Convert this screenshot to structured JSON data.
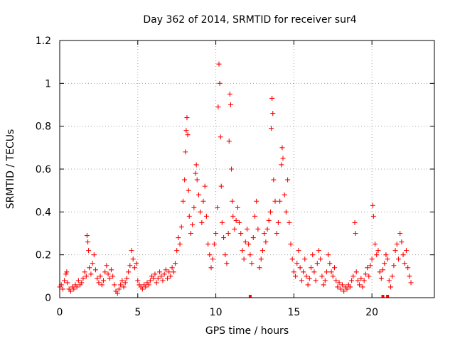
{
  "chart_data": {
    "type": "scatter",
    "title": "Day 362 of 2014, SRMTID for receiver sur4",
    "xlabel": "GPS time / hours",
    "ylabel": "SRMTID / TECUs",
    "xlim": [
      0,
      24
    ],
    "ylim": [
      0,
      1.2
    ],
    "xticks": [
      0,
      5,
      10,
      15,
      20
    ],
    "xtick_labels": [
      "0",
      "5",
      "10",
      "15",
      "20"
    ],
    "yticks": [
      0,
      0.2,
      0.4,
      0.6,
      0.8,
      1,
      1.2
    ],
    "ytick_labels": [
      "0",
      "0.2",
      "0.4",
      "0.6",
      "0.8",
      "1",
      "1.2"
    ],
    "grid": true,
    "marker": "+",
    "color": "#ff0000",
    "series": [
      {
        "name": "SRMTID",
        "points": [
          [
            0.0,
            0.05
          ],
          [
            0.1,
            0.06
          ],
          [
            0.2,
            0.04
          ],
          [
            0.3,
            0.08
          ],
          [
            0.4,
            0.11
          ],
          [
            0.45,
            0.12
          ],
          [
            0.5,
            0.07
          ],
          [
            0.6,
            0.04
          ],
          [
            0.7,
            0.03
          ],
          [
            0.8,
            0.05
          ],
          [
            0.9,
            0.04
          ],
          [
            1.0,
            0.06
          ],
          [
            1.1,
            0.05
          ],
          [
            1.2,
            0.08
          ],
          [
            1.3,
            0.06
          ],
          [
            1.4,
            0.07
          ],
          [
            1.5,
            0.09
          ],
          [
            1.6,
            0.12
          ],
          [
            1.7,
            0.1
          ],
          [
            1.75,
            0.29
          ],
          [
            1.8,
            0.26
          ],
          [
            1.85,
            0.22
          ],
          [
            1.9,
            0.14
          ],
          [
            2.0,
            0.11
          ],
          [
            2.1,
            0.16
          ],
          [
            2.2,
            0.2
          ],
          [
            2.3,
            0.13
          ],
          [
            2.4,
            0.09
          ],
          [
            2.5,
            0.07
          ],
          [
            2.6,
            0.1
          ],
          [
            2.7,
            0.06
          ],
          [
            2.8,
            0.08
          ],
          [
            2.9,
            0.12
          ],
          [
            3.0,
            0.15
          ],
          [
            3.1,
            0.11
          ],
          [
            3.2,
            0.09
          ],
          [
            3.3,
            0.13
          ],
          [
            3.4,
            0.1
          ],
          [
            3.5,
            0.06
          ],
          [
            3.6,
            0.03
          ],
          [
            3.7,
            0.02
          ],
          [
            3.8,
            0.04
          ],
          [
            3.9,
            0.06
          ],
          [
            4.0,
            0.08
          ],
          [
            4.1,
            0.05
          ],
          [
            4.2,
            0.07
          ],
          [
            4.3,
            0.09
          ],
          [
            4.4,
            0.12
          ],
          [
            4.5,
            0.15
          ],
          [
            4.6,
            0.22
          ],
          [
            4.7,
            0.18
          ],
          [
            4.8,
            0.14
          ],
          [
            4.9,
            0.16
          ],
          [
            5.0,
            0.08
          ],
          [
            5.1,
            0.06
          ],
          [
            5.2,
            0.05
          ],
          [
            5.3,
            0.04
          ],
          [
            5.4,
            0.06
          ],
          [
            5.5,
            0.05
          ],
          [
            5.6,
            0.07
          ],
          [
            5.7,
            0.06
          ],
          [
            5.8,
            0.08
          ],
          [
            5.9,
            0.1
          ],
          [
            6.0,
            0.09
          ],
          [
            6.1,
            0.11
          ],
          [
            6.2,
            0.07
          ],
          [
            6.3,
            0.09
          ],
          [
            6.4,
            0.12
          ],
          [
            6.5,
            0.1
          ],
          [
            6.6,
            0.08
          ],
          [
            6.7,
            0.11
          ],
          [
            6.8,
            0.13
          ],
          [
            6.9,
            0.09
          ],
          [
            7.0,
            0.12
          ],
          [
            7.1,
            0.1
          ],
          [
            7.2,
            0.14
          ],
          [
            7.3,
            0.12
          ],
          [
            7.4,
            0.16
          ],
          [
            7.5,
            0.22
          ],
          [
            7.6,
            0.28
          ],
          [
            7.7,
            0.25
          ],
          [
            7.8,
            0.33
          ],
          [
            7.9,
            0.45
          ],
          [
            8.0,
            0.55
          ],
          [
            8.05,
            0.68
          ],
          [
            8.1,
            0.78
          ],
          [
            8.15,
            0.84
          ],
          [
            8.2,
            0.76
          ],
          [
            8.25,
            0.5
          ],
          [
            8.3,
            0.38
          ],
          [
            8.4,
            0.3
          ],
          [
            8.5,
            0.34
          ],
          [
            8.6,
            0.42
          ],
          [
            8.7,
            0.58
          ],
          [
            8.75,
            0.62
          ],
          [
            8.8,
            0.55
          ],
          [
            8.9,
            0.48
          ],
          [
            9.0,
            0.4
          ],
          [
            9.1,
            0.35
          ],
          [
            9.2,
            0.45
          ],
          [
            9.3,
            0.52
          ],
          [
            9.4,
            0.38
          ],
          [
            9.5,
            0.25
          ],
          [
            9.6,
            0.2
          ],
          [
            9.7,
            0.14
          ],
          [
            9.8,
            0.18
          ],
          [
            9.9,
            0.25
          ],
          [
            10.0,
            0.3
          ],
          [
            10.1,
            0.42
          ],
          [
            10.15,
            0.89
          ],
          [
            10.2,
            1.09
          ],
          [
            10.25,
            1.0
          ],
          [
            10.3,
            0.75
          ],
          [
            10.35,
            0.52
          ],
          [
            10.4,
            0.35
          ],
          [
            10.5,
            0.28
          ],
          [
            10.6,
            0.2
          ],
          [
            10.7,
            0.16
          ],
          [
            10.8,
            0.3
          ],
          [
            10.85,
            0.73
          ],
          [
            10.9,
            0.95
          ],
          [
            10.95,
            0.9
          ],
          [
            11.0,
            0.6
          ],
          [
            11.05,
            0.45
          ],
          [
            11.1,
            0.38
          ],
          [
            11.2,
            0.32
          ],
          [
            11.3,
            0.36
          ],
          [
            11.4,
            0.42
          ],
          [
            11.5,
            0.35
          ],
          [
            11.6,
            0.3
          ],
          [
            11.7,
            0.22
          ],
          [
            11.8,
            0.18
          ],
          [
            11.9,
            0.26
          ],
          [
            12.0,
            0.32
          ],
          [
            12.1,
            0.25
          ],
          [
            12.2,
            0.2
          ],
          [
            12.3,
            0.16
          ],
          [
            12.4,
            0.28
          ],
          [
            12.5,
            0.38
          ],
          [
            12.6,
            0.45
          ],
          [
            12.7,
            0.32
          ],
          [
            12.8,
            0.14
          ],
          [
            12.9,
            0.18
          ],
          [
            13.0,
            0.22
          ],
          [
            13.1,
            0.3
          ],
          [
            13.2,
            0.26
          ],
          [
            13.3,
            0.32
          ],
          [
            13.4,
            0.36
          ],
          [
            13.5,
            0.4
          ],
          [
            13.55,
            0.79
          ],
          [
            13.6,
            0.93
          ],
          [
            13.65,
            0.86
          ],
          [
            13.7,
            0.55
          ],
          [
            13.8,
            0.45
          ],
          [
            13.9,
            0.3
          ],
          [
            14.0,
            0.35
          ],
          [
            14.1,
            0.45
          ],
          [
            14.2,
            0.62
          ],
          [
            14.25,
            0.7
          ],
          [
            14.3,
            0.65
          ],
          [
            14.4,
            0.48
          ],
          [
            14.5,
            0.4
          ],
          [
            14.6,
            0.55
          ],
          [
            14.7,
            0.35
          ],
          [
            14.8,
            0.25
          ],
          [
            14.9,
            0.18
          ],
          [
            15.0,
            0.12
          ],
          [
            15.1,
            0.1
          ],
          [
            15.2,
            0.16
          ],
          [
            15.3,
            0.22
          ],
          [
            15.4,
            0.14
          ],
          [
            15.5,
            0.08
          ],
          [
            15.6,
            0.12
          ],
          [
            15.7,
            0.18
          ],
          [
            15.8,
            0.1
          ],
          [
            15.9,
            0.06
          ],
          [
            16.0,
            0.09
          ],
          [
            16.1,
            0.14
          ],
          [
            16.2,
            0.2
          ],
          [
            16.3,
            0.12
          ],
          [
            16.4,
            0.08
          ],
          [
            16.5,
            0.16
          ],
          [
            16.6,
            0.22
          ],
          [
            16.7,
            0.18
          ],
          [
            16.8,
            0.1
          ],
          [
            16.9,
            0.06
          ],
          [
            17.0,
            0.08
          ],
          [
            17.1,
            0.12
          ],
          [
            17.2,
            0.2
          ],
          [
            17.3,
            0.16
          ],
          [
            17.4,
            0.12
          ],
          [
            17.5,
            0.1
          ],
          [
            17.6,
            0.14
          ],
          [
            17.7,
            0.08
          ],
          [
            17.8,
            0.05
          ],
          [
            17.9,
            0.07
          ],
          [
            18.0,
            0.04
          ],
          [
            18.1,
            0.06
          ],
          [
            18.2,
            0.03
          ],
          [
            18.3,
            0.05
          ],
          [
            18.4,
            0.04
          ],
          [
            18.5,
            0.06
          ],
          [
            18.6,
            0.05
          ],
          [
            18.7,
            0.08
          ],
          [
            18.8,
            0.1
          ],
          [
            18.9,
            0.35
          ],
          [
            18.95,
            0.3
          ],
          [
            19.0,
            0.12
          ],
          [
            19.1,
            0.08
          ],
          [
            19.2,
            0.06
          ],
          [
            19.3,
            0.09
          ],
          [
            19.4,
            0.05
          ],
          [
            19.5,
            0.08
          ],
          [
            19.6,
            0.11
          ],
          [
            19.7,
            0.14
          ],
          [
            19.8,
            0.1
          ],
          [
            19.9,
            0.15
          ],
          [
            20.0,
            0.18
          ],
          [
            20.05,
            0.43
          ],
          [
            20.1,
            0.38
          ],
          [
            20.2,
            0.25
          ],
          [
            20.3,
            0.2
          ],
          [
            20.4,
            0.22
          ],
          [
            20.5,
            0.12
          ],
          [
            20.6,
            0.09
          ],
          [
            20.7,
            0.13
          ],
          [
            20.8,
            0.16
          ],
          [
            20.9,
            0.2
          ],
          [
            21.0,
            0.18
          ],
          [
            21.1,
            0.08
          ],
          [
            21.2,
            0.05
          ],
          [
            21.3,
            0.1
          ],
          [
            21.4,
            0.15
          ],
          [
            21.5,
            0.22
          ],
          [
            21.6,
            0.25
          ],
          [
            21.7,
            0.18
          ],
          [
            21.8,
            0.3
          ],
          [
            21.9,
            0.26
          ],
          [
            22.0,
            0.2
          ],
          [
            22.1,
            0.16
          ],
          [
            22.2,
            0.22
          ],
          [
            22.3,
            0.14
          ],
          [
            22.4,
            0.1
          ],
          [
            22.5,
            0.07
          ]
        ]
      }
    ],
    "zero_markers_x": [
      12.2,
      20.7,
      21.0
    ]
  }
}
